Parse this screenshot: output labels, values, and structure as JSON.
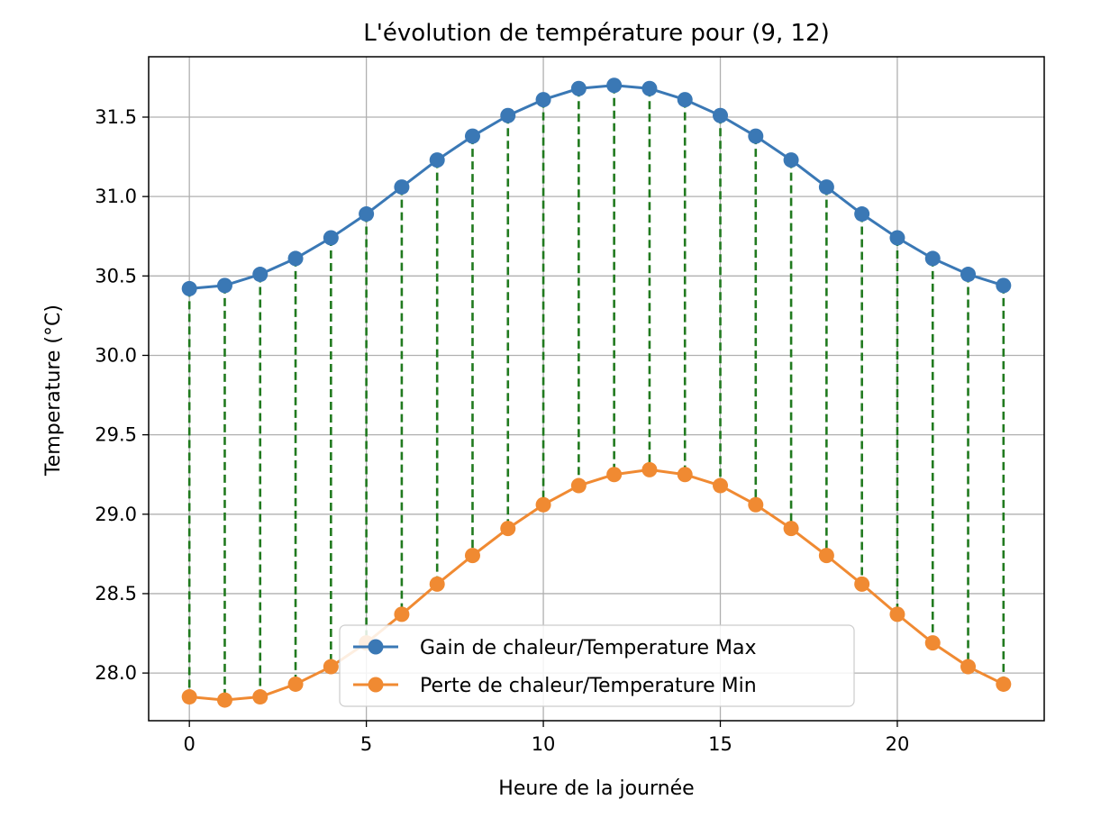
{
  "chart_data": {
    "type": "line",
    "title": "L'évolution de température pour (9, 12)",
    "xlabel": "Heure de la journée",
    "ylabel": "Temperature (°C)",
    "xlim": [
      -1.15,
      24.15
    ],
    "ylim": [
      27.7,
      31.88
    ],
    "xticks": [
      0,
      5,
      10,
      15,
      20
    ],
    "yticks": [
      28.0,
      28.5,
      29.0,
      29.5,
      30.0,
      30.5,
      31.0,
      31.5
    ],
    "grid": true,
    "legend_position": "lower-center",
    "x": [
      0,
      1,
      2,
      3,
      4,
      5,
      6,
      7,
      8,
      9,
      10,
      11,
      12,
      13,
      14,
      15,
      16,
      17,
      18,
      19,
      20,
      21,
      22,
      23
    ],
    "series": [
      {
        "name": "Gain de chaleur/Temperature Max",
        "color": "#3a78b5",
        "values": [
          30.42,
          30.44,
          30.51,
          30.61,
          30.74,
          30.89,
          31.06,
          31.23,
          31.38,
          31.51,
          31.61,
          31.68,
          31.7,
          31.68,
          31.61,
          31.51,
          31.38,
          31.23,
          31.06,
          30.89,
          30.74,
          30.61,
          30.51,
          30.44
        ]
      },
      {
        "name": "Perte de chaleur/Temperature Min",
        "color": "#f08a32",
        "values": [
          27.85,
          27.83,
          27.85,
          27.93,
          28.04,
          28.19,
          28.37,
          28.56,
          28.74,
          28.91,
          29.06,
          29.18,
          29.25,
          29.28,
          29.25,
          29.18,
          29.06,
          28.91,
          28.74,
          28.56,
          28.37,
          28.19,
          28.04,
          27.93
        ]
      }
    ],
    "connector_color": "#217a1f"
  }
}
